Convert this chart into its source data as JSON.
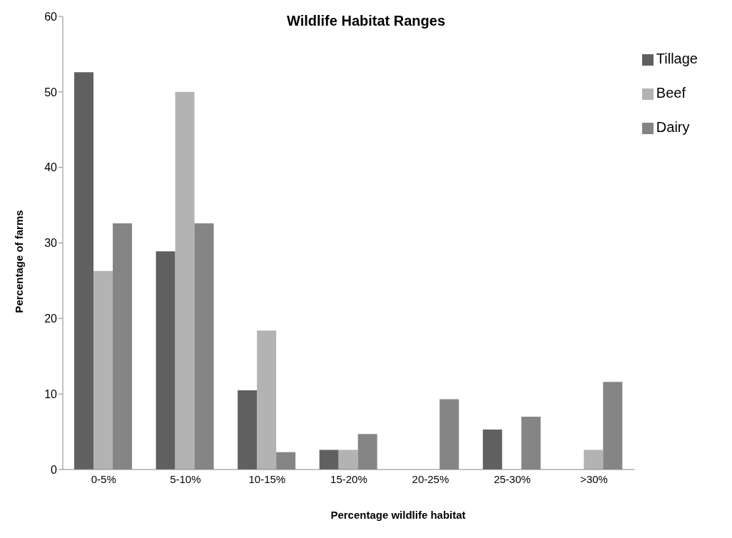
{
  "chart_data": {
    "type": "bar",
    "title": "Wildlife Habitat Ranges",
    "xlabel": "Percentage wildlife habitat",
    "ylabel": "Percentage of farms",
    "categories": [
      "0-5%",
      "5-10%",
      "10-15%",
      "15-20%",
      "20-25%",
      "25-30%",
      ">30%"
    ],
    "series": [
      {
        "name": "Tillage",
        "color": "#606060",
        "values": [
          52.6,
          28.9,
          10.5,
          2.6,
          0,
          5.3,
          0
        ]
      },
      {
        "name": "Beef",
        "color": "#b3b3b3",
        "values": [
          26.3,
          50,
          18.4,
          2.6,
          0,
          0,
          2.6
        ]
      },
      {
        "name": "Dairy",
        "color": "#858585",
        "values": [
          32.6,
          32.6,
          2.3,
          4.7,
          9.3,
          7.0,
          11.6
        ]
      }
    ],
    "ylim": [
      0,
      60
    ],
    "yticks": [
      0,
      10,
      20,
      30,
      40,
      50,
      60
    ],
    "legend": "top right"
  }
}
